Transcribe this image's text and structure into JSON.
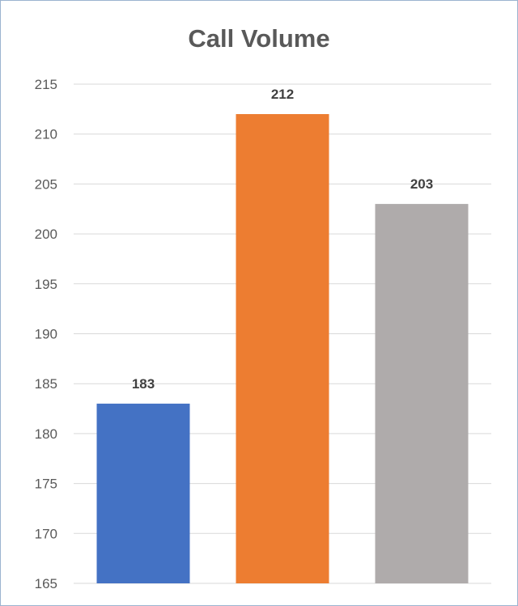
{
  "chart_data": {
    "type": "bar",
    "title": "Call Volume",
    "xlabel": "",
    "ylabel": "",
    "categories": [
      "",
      "",
      ""
    ],
    "values": [
      183,
      212,
      203
    ],
    "data_labels": [
      "183",
      "212",
      "203"
    ],
    "ylim": [
      165,
      215
    ],
    "yticks": [
      165,
      170,
      175,
      180,
      185,
      190,
      195,
      200,
      205,
      210,
      215
    ],
    "ytick_labels": [
      "165",
      "170",
      "175",
      "180",
      "185",
      "190",
      "195",
      "200",
      "205",
      "210",
      "215"
    ],
    "grid": true,
    "legend": "none",
    "colors": [
      "#4472c4",
      "#ed7d31",
      "#afabab"
    ],
    "gridline_color": "#d9d9d9"
  }
}
